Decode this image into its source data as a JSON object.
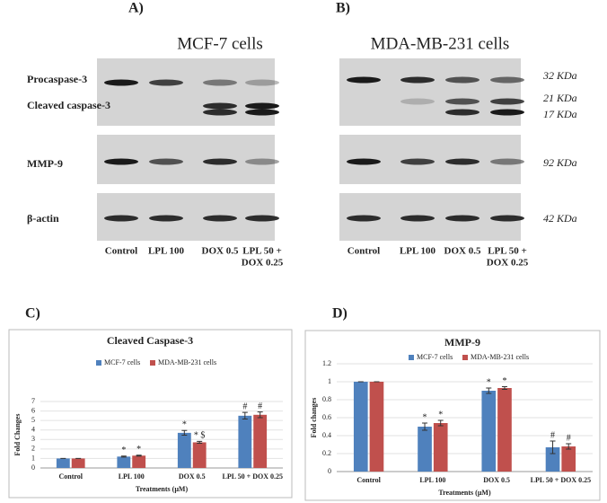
{
  "panels": [
    "A)",
    "B)",
    "C)",
    "D)"
  ],
  "blots": [
    {
      "title": "MCF-7 cells",
      "rows": [
        "Procaspase-3",
        "Cleaved caspase-3",
        "MMP-9",
        "β-actin"
      ],
      "lanes": [
        [
          "Control"
        ],
        [
          "LPL 100"
        ],
        [
          "DOX 0.5"
        ],
        [
          "LPL 50 +",
          "DOX 0.25"
        ]
      ]
    },
    {
      "title": "MDA-MB-231 cells",
      "sizes": [
        "32 KDa",
        "21 KDa",
        "17 KDa",
        "92 KDa",
        "42 KDa"
      ],
      "lanes": [
        [
          "Control"
        ],
        [
          "LPL 100"
        ],
        [
          "DOX 0.5"
        ],
        [
          "LPL 50 +",
          "DOX 0.25"
        ]
      ]
    }
  ],
  "chart_data": [
    {
      "type": "bar",
      "title": "Cleaved Caspase-3",
      "y_label": "Fold Changes",
      "x_label": "Treatments (µM)",
      "categories": [
        "Control",
        "LPL 100",
        "DOX 0.5",
        "LPL 50 + DOX 0.25"
      ],
      "series": [
        {
          "name": "MCF-7 cells",
          "color": "#4f81bd",
          "values": [
            1,
            1.2,
            3.7,
            5.5
          ],
          "errors": [
            0,
            0.05,
            0.25,
            0.35
          ],
          "annotations": [
            null,
            "*",
            "*",
            "#"
          ]
        },
        {
          "name": "MDA-MB-231 cells",
          "color": "#c0504d",
          "values": [
            1,
            1.3,
            2.7,
            5.6
          ],
          "errors": [
            0,
            0.05,
            0.1,
            0.3
          ],
          "annotations": [
            null,
            "*",
            "* $",
            "#"
          ]
        }
      ],
      "ylim": [
        0,
        7
      ],
      "yticks": [
        0,
        1,
        2,
        3,
        4,
        5,
        6,
        7
      ],
      "grid": true
    },
    {
      "type": "bar",
      "title": "MMP-9",
      "y_label": "Fold changes",
      "x_label": "Treatments (µM)",
      "categories": [
        "Control",
        "LPL 100",
        "DOX 0.5",
        "LPL 50 + DOX 0.25"
      ],
      "series": [
        {
          "name": "MCF-7 cells",
          "color": "#4f81bd",
          "values": [
            1,
            0.5,
            0.9,
            0.27
          ],
          "errors": [
            0,
            0.04,
            0.03,
            0.07
          ],
          "annotations": [
            null,
            "*",
            "*",
            "#"
          ]
        },
        {
          "name": "MDA-MB-231 cells",
          "color": "#c0504d",
          "values": [
            1,
            0.54,
            0.93,
            0.28
          ],
          "errors": [
            0,
            0.03,
            0.015,
            0.03
          ],
          "annotations": [
            null,
            "*",
            "*",
            "#"
          ]
        }
      ],
      "ylim": [
        0,
        1.2
      ],
      "yticks": [
        0,
        0.2,
        0.4,
        0.6,
        0.8,
        1,
        1.2
      ],
      "grid": true
    }
  ]
}
